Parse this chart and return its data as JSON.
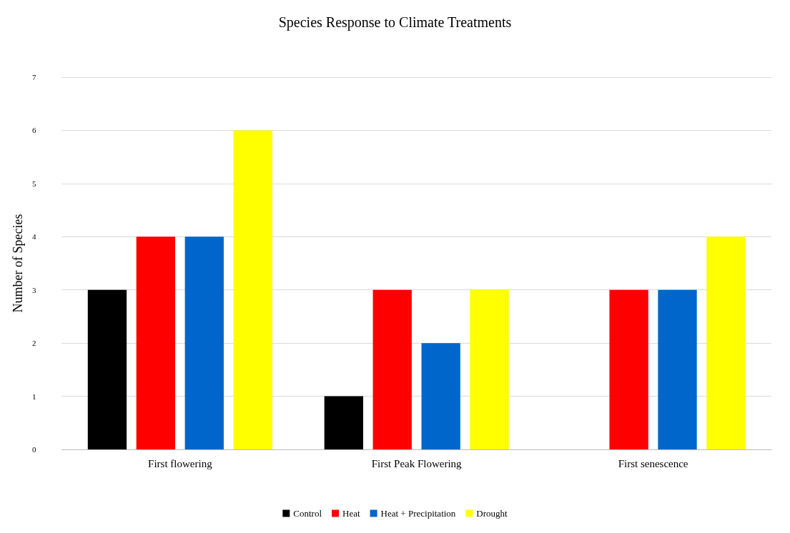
{
  "chart_data": {
    "type": "bar",
    "title": "Species Response to Climate Treatments",
    "ylabel": "Number of Species",
    "categories": [
      "First flowering",
      "First Peak Flowering",
      "First senescence"
    ],
    "series": [
      {
        "name": "Control",
        "color": "#000000",
        "values": [
          3,
          1,
          0
        ]
      },
      {
        "name": "Heat",
        "color": "#ff0000",
        "values": [
          4,
          3,
          3
        ]
      },
      {
        "name": "Heat + Precipitation",
        "color": "#0066cc",
        "values": [
          4,
          2,
          3
        ]
      },
      {
        "name": "Drought",
        "color": "#ffff00",
        "values": [
          6,
          3,
          4
        ]
      }
    ],
    "ylim": [
      0,
      7
    ],
    "yticks": [
      0,
      1,
      2,
      3,
      4,
      5,
      6,
      7
    ],
    "grid": "y",
    "legend": "bottom"
  }
}
